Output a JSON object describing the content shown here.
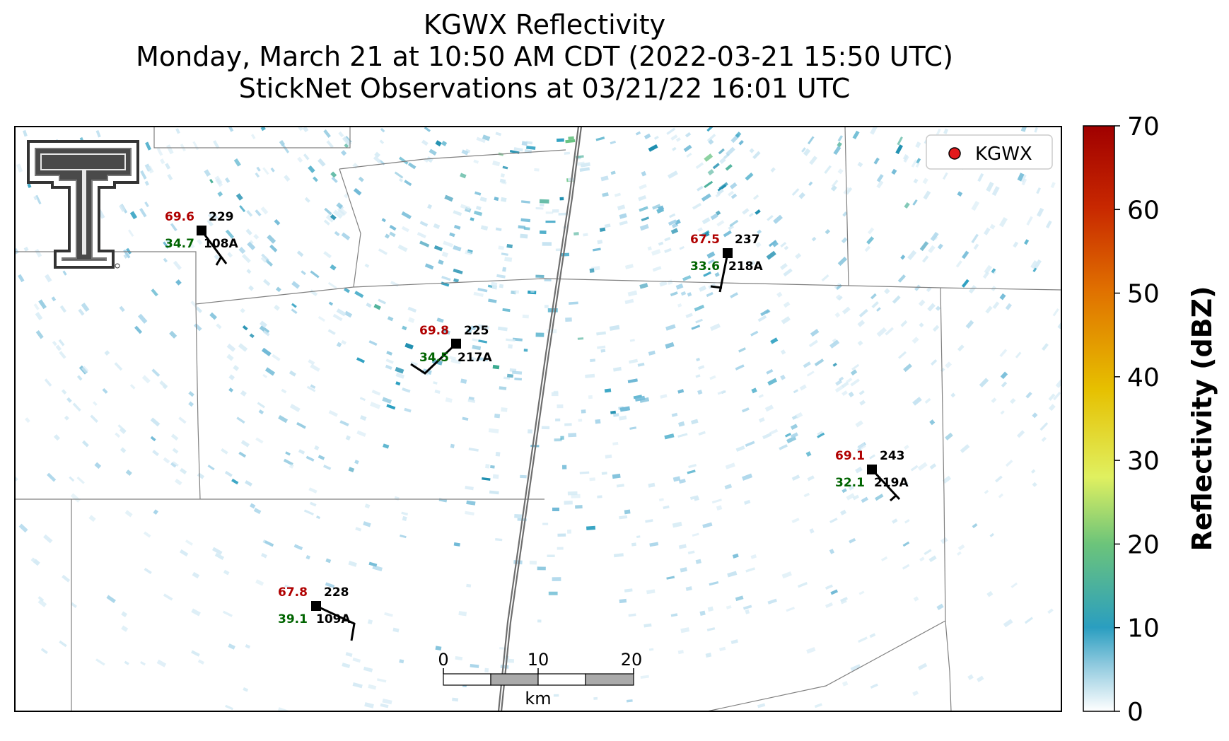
{
  "title": {
    "line1": "KGWX Reflectivity",
    "line2": "Monday, March 21 at 10:50 AM CDT (2022-03-21 15:50 UTC)",
    "line3": "StickNet Observations at 03/21/22 16:01 UTC"
  },
  "legend": {
    "label": "KGWX",
    "marker_color": "#e31a1c"
  },
  "colorbar": {
    "label": "Reflectivity (dBZ)",
    "ticks": [
      "0",
      "10",
      "20",
      "30",
      "40",
      "50",
      "60",
      "70"
    ],
    "colors": [
      "#ffffff",
      "#2a9ec0",
      "#6cc47a",
      "#e0f060",
      "#e6c000",
      "#e07000",
      "#c82800",
      "#a00000"
    ]
  },
  "scale_bar": {
    "labels": [
      "0",
      "10",
      "20"
    ],
    "unit": "km"
  },
  "stations": [
    {
      "id": "108A",
      "temp": "69.6",
      "dew": "34.7",
      "dir": "229"
    },
    {
      "id": "218A",
      "temp": "67.5",
      "dew": "33.6",
      "dir": "237"
    },
    {
      "id": "217A",
      "temp": "69.8",
      "dew": "34.5",
      "dir": "225"
    },
    {
      "id": "219A",
      "temp": "69.1",
      "dew": "32.1",
      "dir": "243"
    },
    {
      "id": "109A",
      "temp": "67.8",
      "dew": "39.1",
      "dir": "228"
    }
  ],
  "colors": {
    "temp": "#b00000",
    "dew": "#006400",
    "id": "#000000"
  },
  "logo": "texas-tech-double-t-logo"
}
